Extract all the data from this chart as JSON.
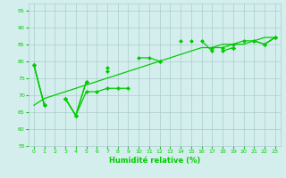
{
  "x": [
    0,
    1,
    2,
    3,
    4,
    5,
    6,
    7,
    8,
    9,
    10,
    11,
    12,
    13,
    14,
    15,
    16,
    17,
    18,
    19,
    20,
    21,
    22,
    23
  ],
  "line1": [
    79,
    67,
    null,
    69,
    64,
    74,
    null,
    78,
    null,
    null,
    81,
    81,
    80,
    null,
    null,
    86,
    null,
    null,
    83,
    84,
    null,
    null,
    85,
    87
  ],
  "line2": [
    79,
    67,
    null,
    69,
    64,
    74,
    null,
    77,
    null,
    null,
    null,
    null,
    80,
    null,
    86,
    null,
    86,
    83,
    null,
    84,
    null,
    86,
    85,
    87
  ],
  "line3": [
    79,
    67,
    null,
    69,
    64,
    71,
    71,
    72,
    72,
    72,
    null,
    null,
    null,
    null,
    null,
    null,
    null,
    84,
    84,
    85,
    86,
    86,
    85,
    87
  ],
  "line_reg": [
    67,
    69,
    70,
    71,
    72,
    73,
    74,
    75,
    76,
    77,
    78,
    79,
    80,
    81,
    82,
    83,
    84,
    84,
    85,
    85,
    85,
    86,
    87,
    87
  ],
  "xlim": [
    -0.5,
    23.5
  ],
  "ylim": [
    55,
    97
  ],
  "yticks": [
    55,
    60,
    65,
    70,
    75,
    80,
    85,
    90,
    95
  ],
  "xticks": [
    0,
    1,
    2,
    3,
    4,
    5,
    6,
    7,
    8,
    9,
    10,
    11,
    12,
    13,
    14,
    15,
    16,
    17,
    18,
    19,
    20,
    21,
    22,
    23
  ],
  "xlabel": "Humidité relative (%)",
  "line_color": "#00cc00",
  "bg_color": "#d4eeee",
  "grid_color": "#aacccc",
  "title": ""
}
